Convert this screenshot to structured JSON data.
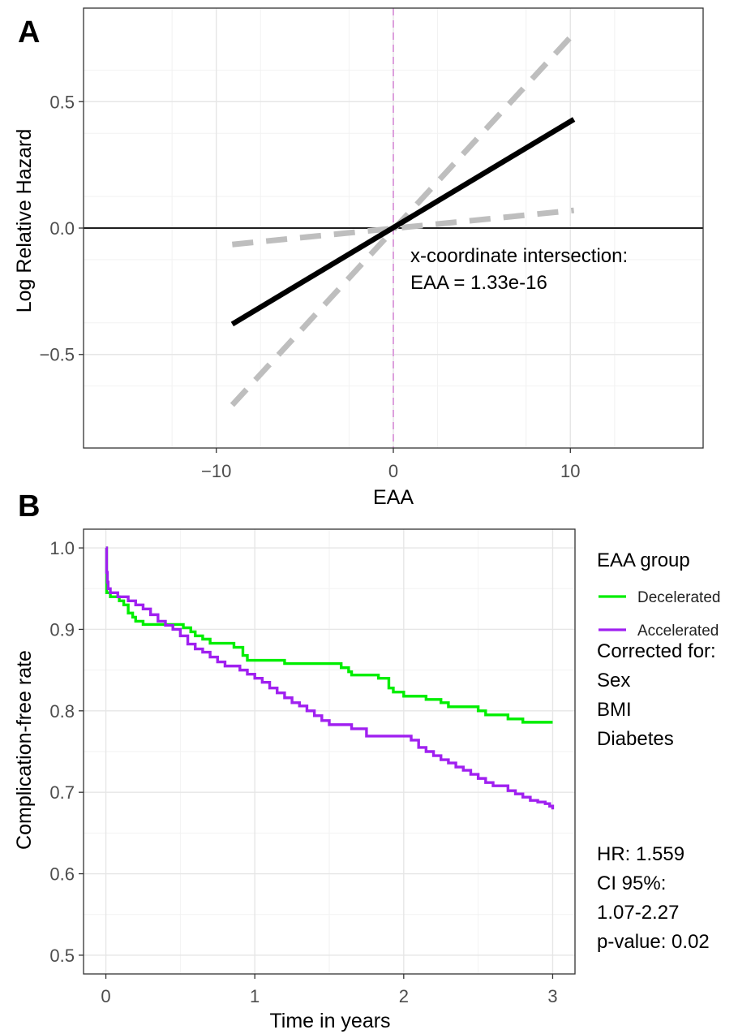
{
  "chart_data": [
    {
      "panel": "A",
      "type": "line",
      "xlabel": "EAA",
      "ylabel": "Log Relative Hazard",
      "xlim": [
        -17.5,
        17.5
      ],
      "ylim": [
        -0.87,
        0.87
      ],
      "xticks": [
        -10,
        0,
        10
      ],
      "xtick_labels": [
        "−10",
        "0",
        "10"
      ],
      "yticks": [
        -0.5,
        0.0,
        0.5
      ],
      "ytick_labels": [
        "−0.5",
        "0.0",
        "0.5"
      ],
      "grid": true,
      "series": [
        {
          "style": "solid",
          "color": "#000000",
          "x": [
            -9.1,
            10.2
          ],
          "y": [
            -0.38,
            0.43
          ]
        },
        {
          "style": "dashed",
          "color": "#bebebe",
          "x": [
            -9.1,
            10.2
          ],
          "y": [
            -0.7,
            0.77
          ]
        },
        {
          "style": "dashed",
          "color": "#bebebe",
          "x": [
            -9.1,
            10.2
          ],
          "y": [
            -0.065,
            0.07
          ]
        }
      ],
      "reference_lines": {
        "hline_y": 0,
        "vline_x": 0,
        "vline_color": "#dda0dd"
      },
      "annotation": [
        "x-coordinate intersection:",
        "EAA = 1.33e-16"
      ]
    },
    {
      "panel": "B",
      "type": "line",
      "xlabel": "Time in years",
      "ylabel": "Complication-free rate",
      "xlim": [
        -0.15,
        3.15
      ],
      "ylim": [
        0.477,
        1.023
      ],
      "xticks": [
        0,
        1,
        2,
        3
      ],
      "xtick_labels": [
        "0",
        "1",
        "2",
        "3"
      ],
      "yticks": [
        0.5,
        0.6,
        0.7,
        0.8,
        0.9,
        1.0
      ],
      "ytick_labels": [
        "0.5",
        "0.6",
        "0.7",
        "0.8",
        "0.9",
        "1.0"
      ],
      "grid": true,
      "legend_title": "EAA group",
      "legend_position": "right",
      "series": [
        {
          "name": "Decelerated",
          "color": "#00ee00",
          "x": [
            0,
            0.005,
            0.03,
            0.09,
            0.12,
            0.15,
            0.18,
            0.2,
            0.25,
            0.3,
            0.52,
            0.57,
            0.6,
            0.65,
            0.7,
            0.86,
            0.92,
            0.95,
            1.2,
            1.5,
            1.58,
            1.63,
            1.65,
            1.78,
            1.83,
            1.9,
            1.93,
            2.0,
            2.1,
            2.15,
            2.25,
            2.3,
            2.45,
            2.5,
            2.55,
            2.7,
            2.75,
            2.8,
            2.9,
            3.0
          ],
          "y": [
            1.0,
            0.945,
            0.94,
            0.935,
            0.93,
            0.92,
            0.915,
            0.91,
            0.906,
            0.906,
            0.902,
            0.897,
            0.892,
            0.888,
            0.883,
            0.878,
            0.868,
            0.862,
            0.858,
            0.858,
            0.853,
            0.848,
            0.844,
            0.844,
            0.84,
            0.828,
            0.823,
            0.818,
            0.818,
            0.814,
            0.81,
            0.805,
            0.805,
            0.8,
            0.795,
            0.79,
            0.79,
            0.786,
            0.786,
            0.786
          ]
        },
        {
          "name": "Accelerated",
          "color": "#a020f0",
          "x": [
            0,
            0.005,
            0.01,
            0.015,
            0.03,
            0.08,
            0.15,
            0.2,
            0.25,
            0.3,
            0.35,
            0.4,
            0.45,
            0.5,
            0.55,
            0.6,
            0.65,
            0.7,
            0.75,
            0.8,
            0.9,
            0.95,
            1.0,
            1.05,
            1.1,
            1.15,
            1.2,
            1.25,
            1.3,
            1.35,
            1.4,
            1.45,
            1.5,
            1.65,
            1.75,
            1.95,
            2.05,
            2.1,
            2.15,
            2.2,
            2.25,
            2.3,
            2.35,
            2.4,
            2.45,
            2.5,
            2.55,
            2.6,
            2.7,
            2.75,
            2.8,
            2.85,
            2.9,
            2.95,
            2.98,
            3.0
          ],
          "y": [
            1.0,
            0.97,
            0.958,
            0.95,
            0.945,
            0.94,
            0.935,
            0.93,
            0.925,
            0.918,
            0.91,
            0.905,
            0.9,
            0.892,
            0.882,
            0.876,
            0.872,
            0.866,
            0.86,
            0.855,
            0.85,
            0.845,
            0.84,
            0.835,
            0.828,
            0.822,
            0.816,
            0.81,
            0.806,
            0.8,
            0.794,
            0.788,
            0.783,
            0.778,
            0.769,
            0.769,
            0.764,
            0.755,
            0.75,
            0.745,
            0.74,
            0.736,
            0.731,
            0.727,
            0.722,
            0.717,
            0.712,
            0.708,
            0.702,
            0.698,
            0.694,
            0.69,
            0.688,
            0.686,
            0.683,
            0.679
          ]
        }
      ],
      "side_text": {
        "corrected_lines": [
          "Corrected for:",
          "Sex",
          "BMI",
          "Diabetes"
        ],
        "stats_lines": [
          "HR: 1.559",
          "CI 95%:",
          "1.07-2.27",
          "p-value: 0.02"
        ]
      }
    }
  ]
}
